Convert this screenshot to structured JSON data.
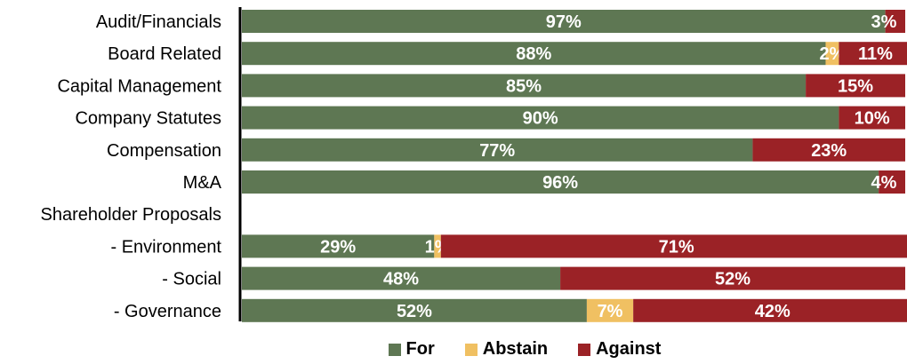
{
  "chart_data": {
    "type": "bar",
    "orientation": "horizontal",
    "stacked": true,
    "percent_stacked": true,
    "categories": [
      "Audit/Financials",
      "Board Related",
      "Capital Management",
      "Company Statutes",
      "Compensation",
      "M&A",
      "Shareholder Proposals",
      "- Environment",
      "- Social",
      "- Governance"
    ],
    "series": [
      {
        "name": "For",
        "color": "#5e7753",
        "values": [
          97,
          88,
          85,
          90,
          77,
          96,
          null,
          29,
          48,
          52
        ],
        "labels": [
          "97%",
          "88%",
          "85%",
          "90%",
          "77%",
          "96%",
          "",
          "29%",
          "48%",
          "52%"
        ]
      },
      {
        "name": "Abstain",
        "color": "#f0c062",
        "values": [
          0,
          2,
          0,
          0,
          0,
          0,
          null,
          1,
          0,
          7
        ],
        "labels": [
          "",
          "2%",
          "",
          "",
          "",
          "",
          "",
          "1%",
          "",
          "7%"
        ]
      },
      {
        "name": "Against",
        "color": "#9b2226",
        "values": [
          3,
          11,
          15,
          10,
          23,
          4,
          null,
          71,
          52,
          42
        ],
        "labels": [
          "3%",
          "11%",
          "15%",
          "10%",
          "23%",
          "4%",
          "",
          "71%",
          "52%",
          "42%"
        ]
      }
    ],
    "xlim": [
      0,
      100
    ],
    "grid": false,
    "legend_position": "bottom"
  }
}
